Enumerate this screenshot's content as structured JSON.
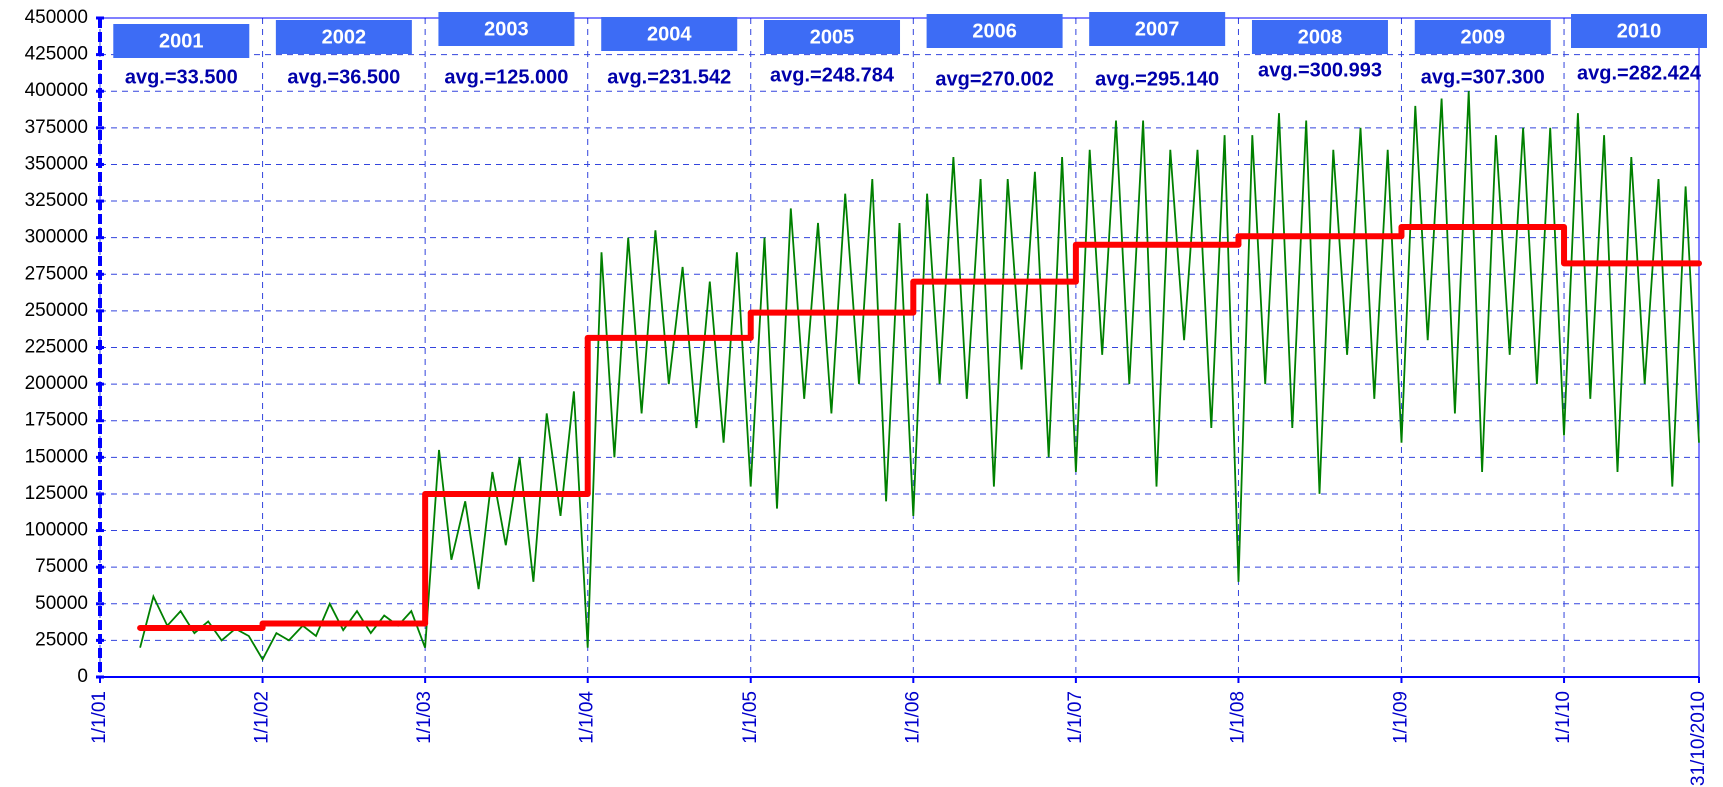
{
  "chart_data": {
    "type": "line",
    "x": [
      "2001-04-01",
      "2001-05-01",
      "2001-06-01",
      "2001-07-01",
      "2001-08-01",
      "2001-09-01",
      "2001-10-01",
      "2001-11-01",
      "2001-12-01",
      "2002-01-01",
      "2002-02-01",
      "2002-03-01",
      "2002-04-01",
      "2002-05-01",
      "2002-06-01",
      "2002-07-01",
      "2002-08-01",
      "2002-09-01",
      "2002-10-01",
      "2002-11-01",
      "2002-12-01",
      "2003-01-01",
      "2003-02-01",
      "2003-03-01",
      "2003-04-01",
      "2003-05-01",
      "2003-06-01",
      "2003-07-01",
      "2003-08-01",
      "2003-09-01",
      "2003-10-01",
      "2003-11-01",
      "2003-12-01",
      "2004-01-01",
      "2004-02-01",
      "2004-03-01",
      "2004-04-01",
      "2004-05-01",
      "2004-06-01",
      "2004-07-01",
      "2004-08-01",
      "2004-09-01",
      "2004-10-01",
      "2004-11-01",
      "2004-12-01",
      "2005-01-01",
      "2005-02-01",
      "2005-03-01",
      "2005-04-01",
      "2005-05-01",
      "2005-06-01",
      "2005-07-01",
      "2005-08-01",
      "2005-09-01",
      "2005-10-01",
      "2005-11-01",
      "2005-12-01",
      "2006-01-01",
      "2006-02-01",
      "2006-03-01",
      "2006-04-01",
      "2006-05-01",
      "2006-06-01",
      "2006-07-01",
      "2006-08-01",
      "2006-09-01",
      "2006-10-01",
      "2006-11-01",
      "2006-12-01",
      "2007-01-01",
      "2007-02-01",
      "2007-03-01",
      "2007-04-01",
      "2007-05-01",
      "2007-06-01",
      "2007-07-01",
      "2007-08-01",
      "2007-09-01",
      "2007-10-01",
      "2007-11-01",
      "2007-12-01",
      "2008-01-01",
      "2008-02-01",
      "2008-03-01",
      "2008-04-01",
      "2008-05-01",
      "2008-06-01",
      "2008-07-01",
      "2008-08-01",
      "2008-09-01",
      "2008-10-01",
      "2008-11-01",
      "2008-12-01",
      "2009-01-01",
      "2009-02-01",
      "2009-03-01",
      "2009-04-01",
      "2009-05-01",
      "2009-06-01",
      "2009-07-01",
      "2009-08-01",
      "2009-09-01",
      "2009-10-01",
      "2009-11-01",
      "2009-12-01",
      "2010-01-01",
      "2010-02-01",
      "2010-03-01",
      "2010-04-01",
      "2010-05-01",
      "2010-06-01",
      "2010-07-01",
      "2010-08-01",
      "2010-09-01",
      "2010-10-01",
      "2010-10-31"
    ],
    "series": [
      {
        "color": "#008000",
        "values": [
          20000,
          55000,
          35000,
          45000,
          30000,
          38000,
          25000,
          33000,
          28000,
          12000,
          30000,
          25000,
          35000,
          28000,
          50000,
          32000,
          45000,
          30000,
          42000,
          35000,
          45000,
          20000,
          155000,
          80000,
          120000,
          60000,
          140000,
          90000,
          150000,
          65000,
          180000,
          110000,
          195000,
          20000,
          290000,
          150000,
          300000,
          180000,
          305000,
          200000,
          280000,
          170000,
          270000,
          160000,
          290000,
          130000,
          300000,
          115000,
          320000,
          190000,
          310000,
          180000,
          330000,
          200000,
          340000,
          120000,
          310000,
          110000,
          330000,
          200000,
          355000,
          190000,
          340000,
          130000,
          340000,
          210000,
          345000,
          150000,
          355000,
          140000,
          360000,
          220000,
          380000,
          200000,
          380000,
          130000,
          360000,
          230000,
          360000,
          170000,
          370000,
          65000,
          370000,
          200000,
          385000,
          170000,
          380000,
          125000,
          360000,
          220000,
          375000,
          190000,
          360000,
          160000,
          390000,
          230000,
          395000,
          180000,
          400000,
          140000,
          370000,
          220000,
          375000,
          200000,
          375000,
          165000,
          385000,
          190000,
          370000,
          140000,
          355000,
          200000,
          340000,
          130000,
          335000,
          160000
        ]
      }
    ],
    "yearly": {
      "categories": [
        "2001",
        "2002",
        "2003",
        "2004",
        "2005",
        "2006",
        "2007",
        "2008",
        "2009",
        "2010"
      ],
      "values": [
        33500,
        36500,
        125000,
        231542,
        248784,
        270002,
        295140,
        300993,
        307300,
        282424
      ],
      "value_labels": [
        "avg.=33.500",
        "avg.=36.500",
        "avg.=125.000",
        "avg.=231.542",
        "avg.=248.784",
        "avg=270.002",
        "avg.=295.140",
        "avg.=300.993",
        "avg.=307.300",
        "avg.=282.424"
      ],
      "color": "#ff0000"
    },
    "xlim": [
      "2001-01-01",
      "2010-10-31"
    ],
    "xticks": [
      {
        "value": "2001-01-01",
        "label": "1/1/01"
      },
      {
        "value": "2002-01-01",
        "label": "1/1/02"
      },
      {
        "value": "2003-01-01",
        "label": "1/1/03"
      },
      {
        "value": "2004-01-01",
        "label": "1/1/04"
      },
      {
        "value": "2005-01-01",
        "label": "1/1/05"
      },
      {
        "value": "2006-01-01",
        "label": "1/1/06"
      },
      {
        "value": "2007-01-01",
        "label": "1/1/07"
      },
      {
        "value": "2008-01-01",
        "label": "1/1/08"
      },
      {
        "value": "2009-01-01",
        "label": "1/1/09"
      },
      {
        "value": "2010-01-01",
        "label": "1/1/10"
      },
      {
        "value": "2010-10-31",
        "label": "31/10/2010"
      }
    ],
    "ylim": [
      0,
      450000
    ],
    "yticks": [
      0,
      25000,
      50000,
      75000,
      100000,
      125000,
      150000,
      175000,
      200000,
      225000,
      250000,
      275000,
      300000,
      325000,
      350000,
      375000,
      400000,
      425000,
      450000
    ],
    "grid": true
  }
}
